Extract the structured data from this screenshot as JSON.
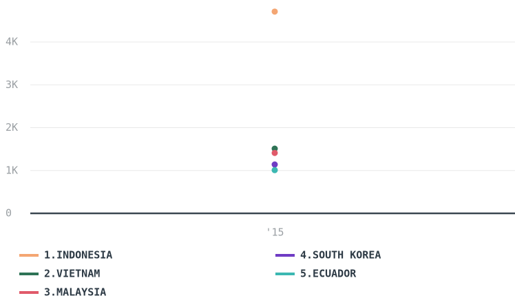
{
  "chart_data": {
    "type": "line",
    "categories": [
      "'15"
    ],
    "series": [
      {
        "name": "1.INDONESIA",
        "color": "#f4a673",
        "values": [
          4710
        ]
      },
      {
        "name": "2.VIETNAM",
        "color": "#2e7356",
        "values": [
          1510
        ]
      },
      {
        "name": "3.MALAYSIA",
        "color": "#e05a6a",
        "values": [
          1410
        ]
      },
      {
        "name": "4.SOUTH KOREA",
        "color": "#6f3cc4",
        "values": [
          1140
        ]
      },
      {
        "name": "5.ECUADOR",
        "color": "#3cb8b2",
        "values": [
          1010
        ]
      }
    ],
    "ylim": [
      0,
      4900
    ],
    "yticks": [
      0,
      {
        "value": 1000,
        "label": "1K"
      },
      {
        "value": 2000,
        "label": "2K"
      },
      {
        "value": 3000,
        "label": "3K"
      },
      {
        "value": 4000,
        "label": "4K"
      }
    ],
    "grid": true
  }
}
